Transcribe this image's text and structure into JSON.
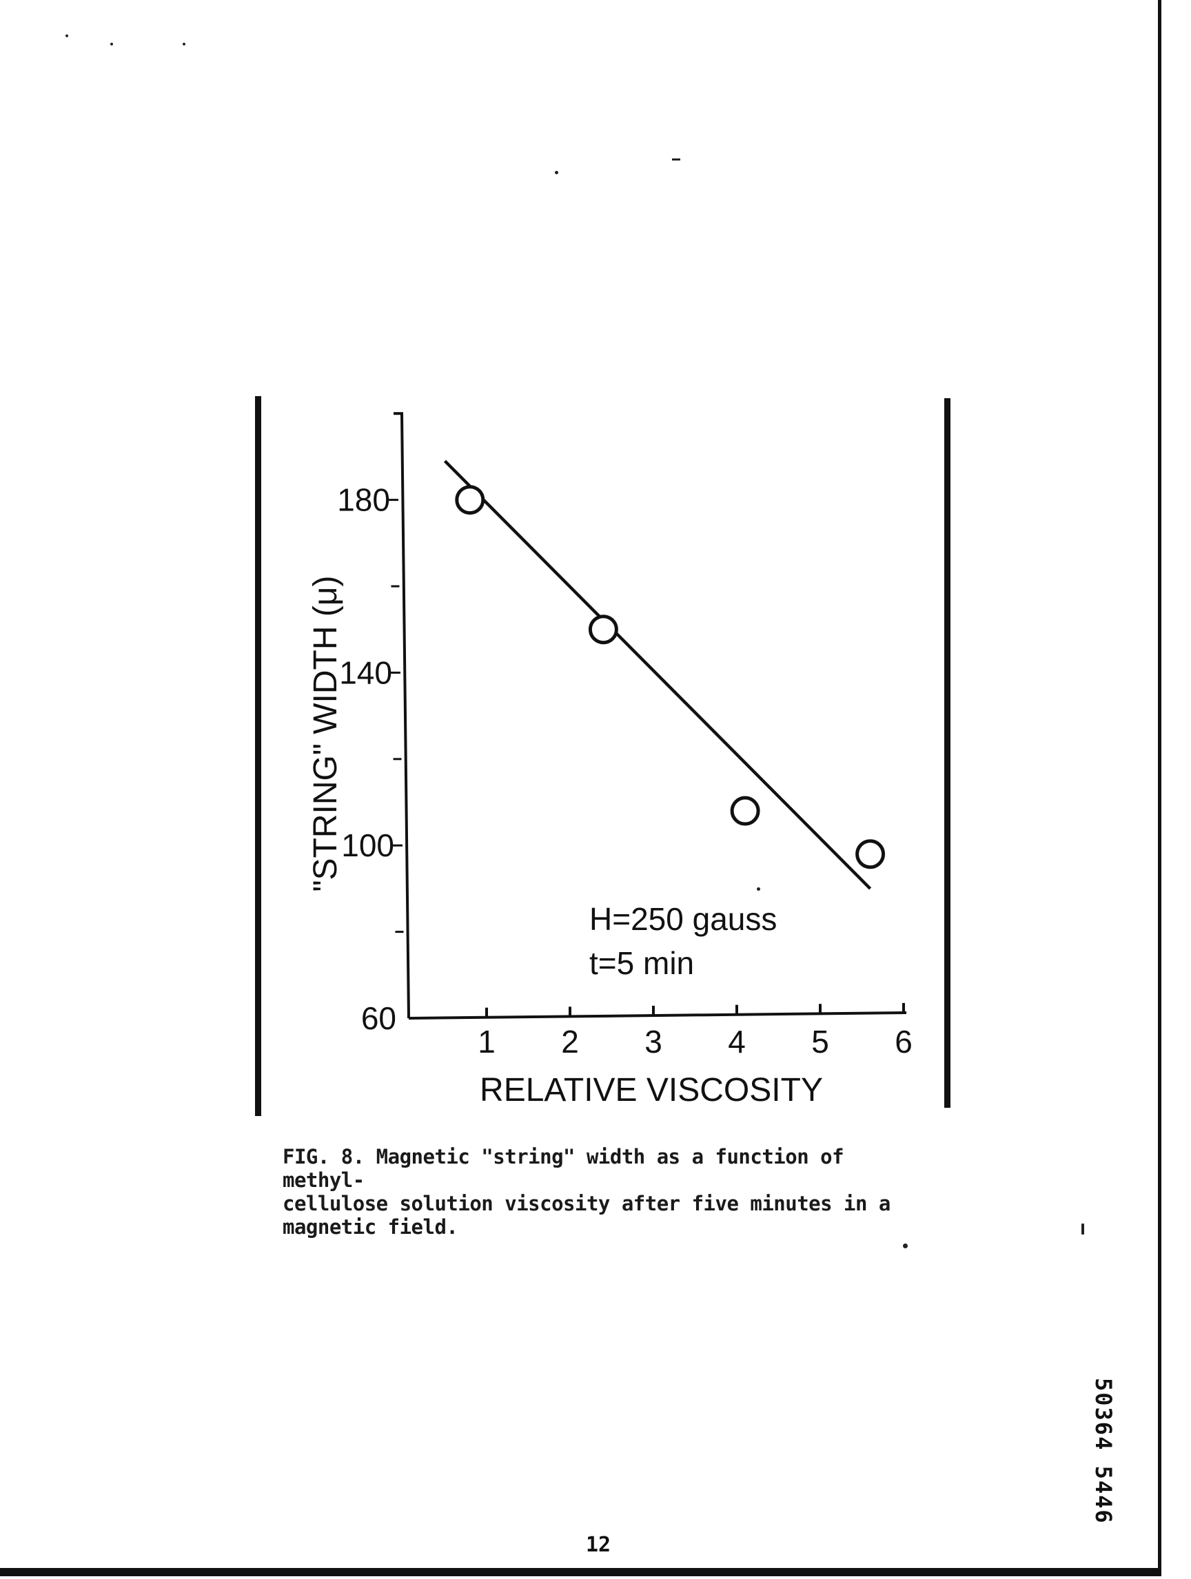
{
  "chart_data": {
    "type": "scatter",
    "title": "",
    "xlabel": "RELATIVE VISCOSITY",
    "ylabel": "\"STRING\" WIDTH (μ)",
    "xlim": [
      0,
      6
    ],
    "ylim": [
      60,
      200
    ],
    "x_ticks": [
      "1",
      "2",
      "3",
      "4",
      "5",
      "6"
    ],
    "y_ticks": [
      "60",
      "100",
      "140",
      "180"
    ],
    "points": [
      {
        "x": 0.8,
        "y": 180
      },
      {
        "x": 2.4,
        "y": 150
      },
      {
        "x": 4.1,
        "y": 108
      },
      {
        "x": 5.6,
        "y": 98
      }
    ],
    "fit_line": {
      "x": [
        0.5,
        5.6
      ],
      "y": [
        189,
        90
      ]
    },
    "annotations": [
      "H=250 gauss",
      "t=5 min"
    ],
    "grid": false,
    "legend": "none"
  },
  "caption": "FIG. 8. Magnetic \"string\" width as a function of methyl-\ncellulose solution viscosity after five minutes in a\nmagnetic field.",
  "page_number": "12",
  "document_id": "50364 5446"
}
